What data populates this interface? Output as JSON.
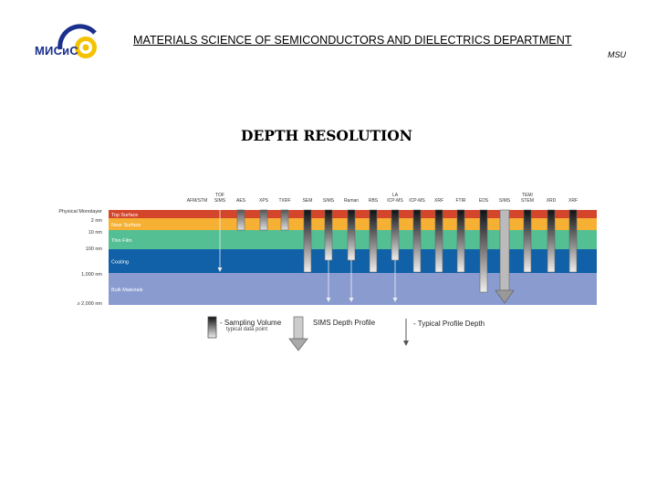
{
  "header": {
    "logo_text": "МИСиС",
    "department": "MATERIALS SCIENCE OF SEMICONDUCTORS AND DIELECTRICS DEPARTMENT",
    "university": "MSU"
  },
  "title": "DEPTH RESOLUTION",
  "depth_labels": [
    "Physical Monolayer",
    "2 nm",
    "10 nm",
    "100 nm",
    "1,000 nm",
    "≥ 2,000 nm"
  ],
  "layers": [
    {
      "label": "Top Surface",
      "color": "#d3462b"
    },
    {
      "label": "Near Surface",
      "color": "#f6b135"
    },
    {
      "label": "Thin Film",
      "color": "#54bf93"
    },
    {
      "label": "Coating",
      "color": "#1161a8"
    },
    {
      "label": "Bulk Materials",
      "color": "#8a9bd0"
    }
  ],
  "techniques": [
    {
      "label": "AFM/STM",
      "bar": "none",
      "depth": "monolayer"
    },
    {
      "label": "TOF SIMS",
      "bar": "arrow",
      "depth": "coating"
    },
    {
      "label": "AES",
      "bar": "short",
      "depth": "near-surface"
    },
    {
      "label": "XPS",
      "bar": "short",
      "depth": "near-surface"
    },
    {
      "label": "TXRF",
      "bar": "short",
      "depth": "near-surface"
    },
    {
      "label": "SEM",
      "bar": "sampling",
      "depth": "coating"
    },
    {
      "label": "SIMS",
      "bar": "sampling+arrow",
      "depth": "bulk"
    },
    {
      "label": "Raman",
      "bar": "sampling+arrow",
      "depth": "bulk"
    },
    {
      "label": "RBS",
      "bar": "sampling",
      "depth": "coating"
    },
    {
      "label": "LA ICP-MS",
      "bar": "sampling+arrow",
      "depth": "bulk"
    },
    {
      "label": "ICP-MS",
      "bar": "sampling",
      "depth": "coating"
    },
    {
      "label": "XRF",
      "bar": "sampling",
      "depth": "coating"
    },
    {
      "label": "FTIR",
      "bar": "sampling",
      "depth": "coating"
    },
    {
      "label": "EDS",
      "bar": "sampling",
      "depth": "bulk"
    },
    {
      "label": "SIMS",
      "bar": "wide-arrow",
      "depth": "bulk"
    },
    {
      "label": "TEM/ STEM",
      "bar": "sampling",
      "depth": "coating"
    },
    {
      "label": "XRD",
      "bar": "sampling",
      "depth": "coating"
    },
    {
      "label": "XRF",
      "bar": "sampling",
      "depth": "coating"
    }
  ],
  "legend": {
    "sampling_volume": "- Sampling Volume",
    "sampling_sub": "typical data point",
    "sims_profile": "SIMS Depth Profile",
    "typical_profile": "- Typical Profile Depth"
  }
}
